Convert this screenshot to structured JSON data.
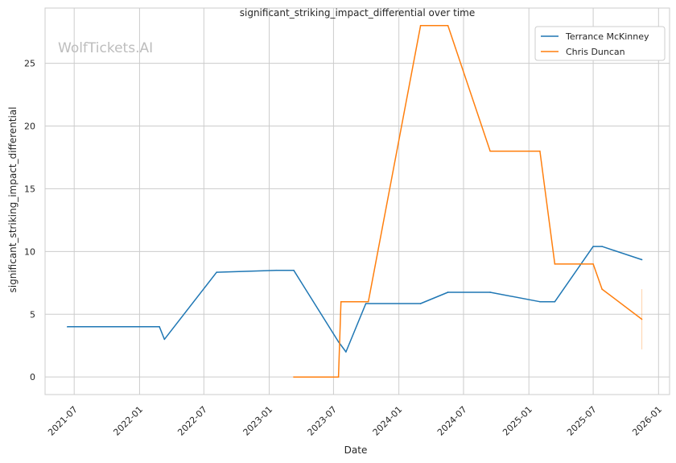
{
  "chart_data": {
    "type": "line",
    "title": "significant_striking_impact_differential over time",
    "xlabel": "Date",
    "ylabel": "significant_striking_impact_differential",
    "watermark": "WolfTickets.AI",
    "x_ticks": [
      "2021-07",
      "2022-01",
      "2022-07",
      "2023-01",
      "2023-07",
      "2024-01",
      "2024-07",
      "2025-01",
      "2025-07",
      "2026-01"
    ],
    "y_ticks": [
      0,
      5,
      10,
      15,
      20,
      25
    ],
    "xlim": [
      "2021-04-10",
      "2026-02-01"
    ],
    "ylim": [
      -1.4,
      29.4
    ],
    "grid": true,
    "legend_position": "top-right",
    "series": [
      {
        "name": "Terrance McKinney",
        "color": "#1f77b4",
        "points": [
          [
            "2021-06-12",
            4.0
          ],
          [
            "2022-02-26",
            4.0
          ],
          [
            "2022-03-12",
            3.0
          ],
          [
            "2022-08-06",
            8.35
          ],
          [
            "2023-01-21",
            8.5
          ],
          [
            "2023-03-11",
            8.5
          ],
          [
            "2023-07-15",
            2.8
          ],
          [
            "2023-08-05",
            2.0
          ],
          [
            "2023-09-30",
            5.85
          ],
          [
            "2024-03-02",
            5.85
          ],
          [
            "2024-05-18",
            6.75
          ],
          [
            "2024-09-14",
            6.75
          ],
          [
            "2025-02-01",
            6.0
          ],
          [
            "2025-03-15",
            6.0
          ],
          [
            "2025-07-01",
            10.4
          ],
          [
            "2025-07-26",
            10.4
          ],
          [
            "2025-11-15",
            9.35
          ]
        ]
      },
      {
        "name": "Chris Duncan",
        "color": "#ff7f0e",
        "points": [
          [
            "2023-03-11",
            0.0
          ],
          [
            "2023-07-15",
            0.0
          ],
          [
            "2023-07-22",
            6.0
          ],
          [
            "2023-10-07",
            6.0
          ],
          [
            "2024-03-02",
            28.0
          ],
          [
            "2024-05-18",
            28.0
          ],
          [
            "2024-09-14",
            18.0
          ],
          [
            "2025-02-01",
            18.0
          ],
          [
            "2025-03-15",
            9.0
          ],
          [
            "2025-07-01",
            9.0
          ],
          [
            "2025-07-26",
            7.0
          ],
          [
            "2025-11-15",
            4.6
          ]
        ],
        "error_bar": {
          "x": "2025-11-15",
          "low": 2.2,
          "high": 7.0
        }
      }
    ]
  }
}
